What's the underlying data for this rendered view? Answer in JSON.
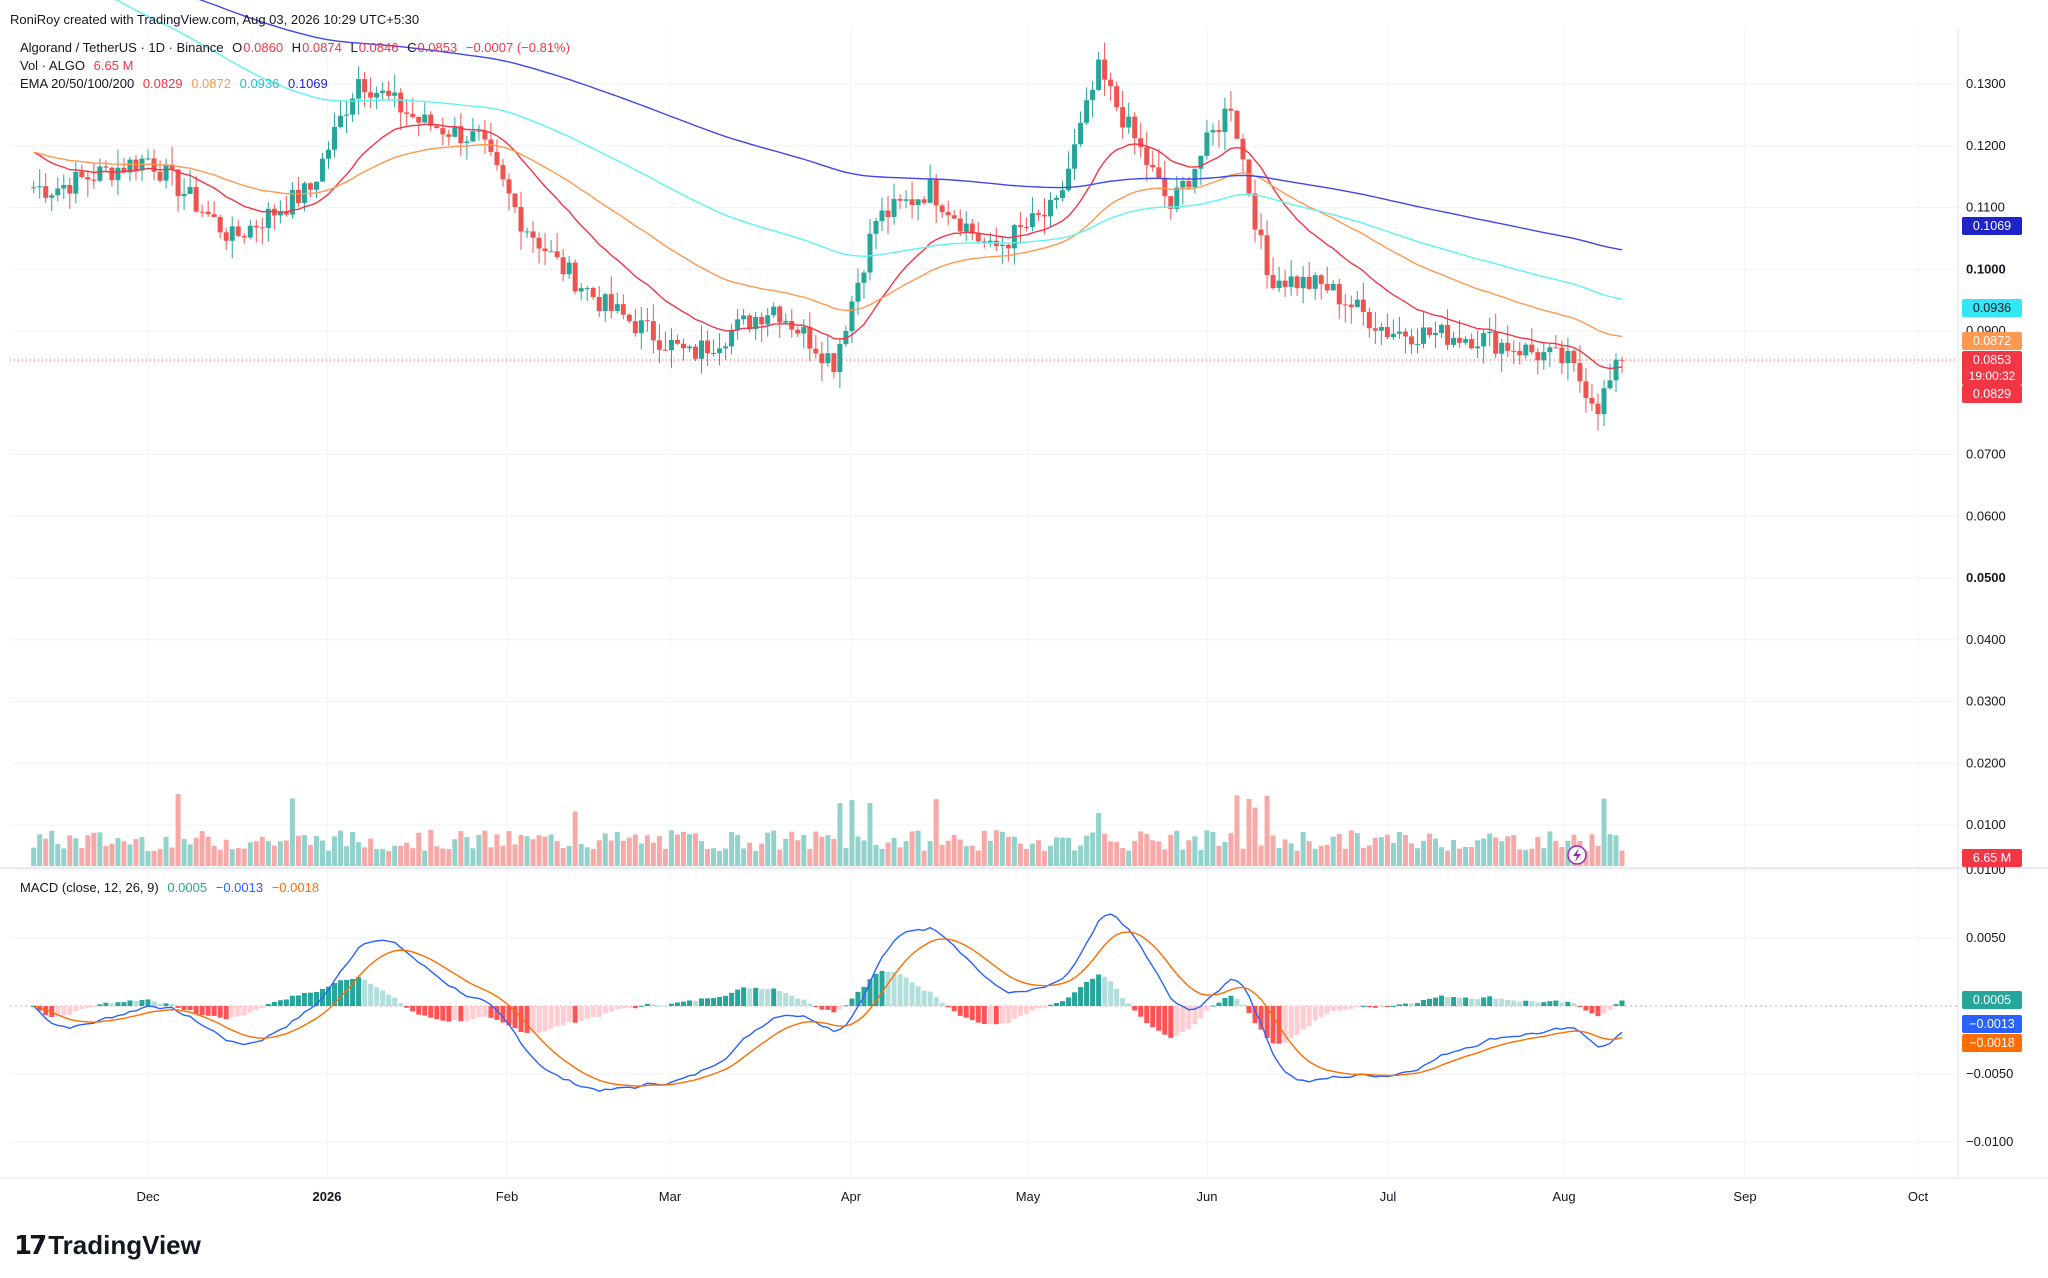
{
  "credit": "RoniRoy created with TradingView.com, Aug 03, 2026 10:29 UTC+5:30",
  "legend": {
    "symbol": "Algorand / TetherUS · 1D · Binance",
    "ohlc": {
      "o_label": "O",
      "o": "0.0860",
      "h_label": "H",
      "h": "0.0874",
      "l_label": "L",
      "l": "0.0846",
      "c_label": "C",
      "c": "0.0853",
      "change": "−0.0007 (−0.81%)"
    },
    "vol_label": "Vol · ALGO",
    "vol_value": "6.65 M",
    "ema_label": "EMA 20/50/100/200",
    "ema_values": [
      "0.0829",
      "0.0872",
      "0.0936",
      "0.1069"
    ],
    "macd_label": "MACD (close, 12, 26, 9)",
    "macd_values": [
      "0.0005",
      "−0.0013",
      "−0.0018"
    ]
  },
  "colors": {
    "up": "#26a69a",
    "down": "#ef5350",
    "vol_up": "#92d2cc",
    "vol_down": "#f7a9a7",
    "ema20": "#f23645",
    "ema50": "#ff9850",
    "ema100": "#5ff3f0",
    "ema200": "#4046e8",
    "macd": "#2962ff",
    "signal": "#ff6d00",
    "hist_up_strong": "#26a69a",
    "hist_up_weak": "#b2dfdb",
    "hist_down_strong": "#ff5252",
    "hist_down_weak": "#ffcdd2",
    "grid": "#f0f3fa",
    "text": "#131722"
  },
  "axes": {
    "price_ticks": [
      "0.1300",
      "0.1200",
      "0.1100",
      "0.1000",
      "0.0900",
      "0.0700",
      "0.0600",
      "0.0500",
      "0.0400",
      "0.0300",
      "0.0200",
      "0.0100"
    ],
    "macd_ticks": [
      "0.0100",
      "0.0050",
      "−0.0050",
      "−0.0100"
    ],
    "time_ticks": [
      "Dec",
      "2026",
      "Feb",
      "Mar",
      "Apr",
      "May",
      "Jun",
      "Jul",
      "Aug",
      "Sep",
      "Oct"
    ]
  },
  "badges": {
    "ema200": "0.1069",
    "ema100": "0.0936",
    "ema50": "0.0872",
    "last": "0.0853",
    "countdown": "19:00:32",
    "ema20": "0.0829",
    "volume": "6.65 M",
    "macd_hist": "0.0005",
    "macd": "−0.0013",
    "signal": "−0.0018"
  },
  "chart_data": {
    "type": "candlestick",
    "title": "Algorand / TetherUS · 1D · Binance",
    "date_range": [
      "2025-11-12",
      "2026-08-03"
    ],
    "price_range": [
      0.04,
      0.138
    ],
    "price_samples_close": {
      "2025-11-15": 0.113,
      "2025-12-01": 0.118,
      "2025-12-15": 0.105,
      "2025-12-28": 0.113,
      "2026-01-05": 0.131,
      "2026-01-15": 0.124,
      "2026-01-25": 0.121,
      "2026-02-01": 0.108,
      "2026-02-07": 0.101,
      "2026-02-15": 0.094,
      "2026-03-01": 0.086,
      "2026-03-15": 0.094,
      "2026-03-25": 0.085,
      "2026-04-01": 0.108,
      "2026-04-10": 0.113,
      "2026-04-20": 0.103,
      "2026-05-01": 0.11,
      "2026-05-08": 0.132,
      "2026-05-20": 0.11,
      "2026-05-30": 0.127,
      "2026-06-05": 0.099,
      "2026-06-15": 0.097,
      "2026-06-25": 0.09,
      "2026-07-10": 0.089,
      "2026-07-25": 0.085,
      "2026-07-30": 0.078,
      "2026-08-03": 0.0853
    },
    "ema": {
      "ema20": 0.0829,
      "ema50": 0.0872,
      "ema100": 0.0936,
      "ema200": 0.1069
    },
    "volume_last": "6.65 M",
    "macd": {
      "macd": -0.0013,
      "signal": -0.0018,
      "histogram": 0.0005
    },
    "macd_range": [
      -0.0125,
      0.011
    ]
  }
}
